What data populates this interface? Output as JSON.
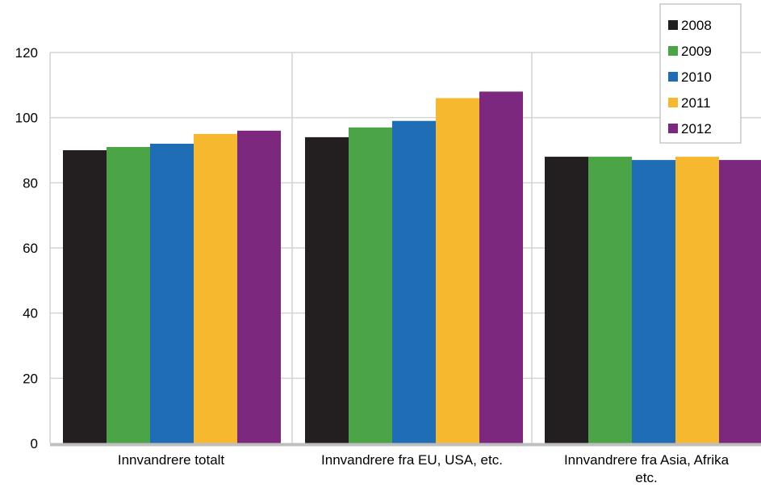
{
  "chart_data": {
    "type": "bar",
    "title": "",
    "xlabel": "",
    "ylabel": "",
    "categories": [
      [
        "Innvandrere totalt"
      ],
      [
        "Innvandrere fra EU, USA, etc."
      ],
      [
        "Innvandrere fra Asia, Afrika",
        "etc."
      ]
    ],
    "series": [
      {
        "name": "2008",
        "color": "#231f20",
        "values": [
          90,
          94,
          88
        ]
      },
      {
        "name": "2009",
        "color": "#4ba446",
        "values": [
          91,
          97,
          88
        ]
      },
      {
        "name": "2010",
        "color": "#1f6db5",
        "values": [
          92,
          99,
          87
        ]
      },
      {
        "name": "2011",
        "color": "#f5b82e",
        "values": [
          95,
          106,
          88
        ]
      },
      {
        "name": "2012",
        "color": "#7b287e",
        "values": [
          96,
          108,
          87
        ]
      }
    ],
    "ylim": [
      0,
      120
    ],
    "yticks": [
      0,
      20,
      40,
      60,
      80,
      100,
      120
    ],
    "grid": true,
    "legend_position": "top-right",
    "colors": {
      "gridline": "#d4d4d4",
      "baseline": "#bfbfbf",
      "legend_border": "#c8c8c8"
    }
  }
}
